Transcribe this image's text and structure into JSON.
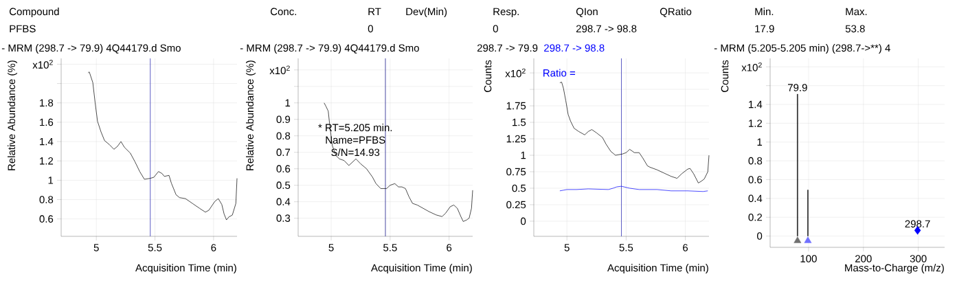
{
  "chart_data": [
    {
      "type": "other",
      "categories": [
        "Compound",
        "Conc.",
        "RT",
        "Dev(Min)",
        "Resp.",
        "QIon",
        "QRatio",
        "Min.",
        "Max."
      ],
      "cell_labels": [
        [
          "PFBS",
          null,
          "0",
          null,
          "0",
          "298.7 -> 98.8",
          null,
          "17.9",
          "53.8"
        ]
      ]
    },
    {
      "type": "line",
      "title": "- MRM (298.7 -> 79.9) 4Q44179.d Smo",
      "xlabel": "Acquisition Time (min)",
      "ylabel": "Relative Abundance (%)",
      "color": "#000000",
      "x": [
        4.93,
        4.94,
        4.97,
        4.99,
        5.01,
        5.04,
        5.07,
        5.11,
        5.15,
        5.18,
        5.21,
        5.24,
        5.29,
        5.33,
        5.37,
        5.41,
        5.46,
        5.49,
        5.53,
        5.56,
        5.58,
        5.62,
        5.64,
        5.68,
        5.71,
        5.76,
        5.82,
        5.88,
        5.93,
        5.96,
        6.01,
        6.04,
        6.07,
        6.09,
        6.11,
        6.13,
        6.16,
        6.19,
        6.2
      ],
      "values": [
        2.11,
        2.12,
        2.01,
        1.8,
        1.61,
        1.5,
        1.41,
        1.37,
        1.32,
        1.35,
        1.4,
        1.34,
        1.28,
        1.19,
        1.09,
        1.01,
        1.02,
        1.03,
        1.09,
        1.07,
        1.04,
        1.05,
        0.97,
        0.85,
        0.82,
        0.81,
        0.76,
        0.71,
        0.67,
        0.69,
        0.78,
        0.81,
        0.75,
        0.65,
        0.59,
        0.62,
        0.64,
        0.76,
        1.02
      ],
      "xlim": [
        4.7,
        6.2
      ],
      "ylim": [
        0.42,
        2.26
      ],
      "xticks": [
        5,
        5.5,
        6
      ],
      "yticks": [
        0.6,
        0.8,
        1,
        1.2,
        1.4,
        1.6,
        1.8,
        {
          "value": 2,
          "label": null
        },
        {
          "value": 2.2,
          "label": "x10$^{2}$"
        }
      ],
      "grid": true,
      "ref_lines": [
        {
          "axis": "x",
          "value": 5.46,
          "color": "#3535b5"
        }
      ]
    },
    {
      "type": "line",
      "title": "- MRM (298.7 -> 79.9) 4Q44179.d Smo",
      "xlabel": "Acquisition Time (min)",
      "ylabel": "Relative Abundance (%)",
      "color": "#000000",
      "x": [
        4.94,
        4.955,
        4.975,
        4.99,
        5.01,
        5.04,
        5.07,
        5.11,
        5.15,
        5.18,
        5.21,
        5.25,
        5.3,
        5.35,
        5.38,
        5.42,
        5.47,
        5.5,
        5.54,
        5.57,
        5.6,
        5.63,
        5.66,
        5.69,
        5.73,
        5.78,
        5.83,
        5.89,
        5.94,
        5.97,
        6.01,
        6.04,
        6.07,
        6.1,
        6.12,
        6.15,
        6.17,
        6.19,
        6.2
      ],
      "values": [
        1.0,
        0.98,
        0.95,
        0.85,
        0.74,
        0.68,
        0.66,
        0.65,
        0.62,
        0.64,
        0.66,
        0.63,
        0.6,
        0.55,
        0.51,
        0.48,
        0.48,
        0.5,
        0.51,
        0.49,
        0.49,
        0.48,
        0.43,
        0.39,
        0.38,
        0.36,
        0.34,
        0.32,
        0.31,
        0.33,
        0.37,
        0.38,
        0.36,
        0.31,
        0.28,
        0.29,
        0.3,
        0.36,
        0.47
      ],
      "xlim": [
        4.72,
        6.2
      ],
      "ylim": [
        0.19,
        1.27
      ],
      "xticks": [
        5,
        5.5,
        6
      ],
      "yticks": [
        0.3,
        0.4,
        0.5,
        0.6,
        0.7,
        0.8,
        0.9,
        1,
        {
          "value": 1.1,
          "label": null
        },
        {
          "value": 1.2,
          "label": "x10$^{2}$"
        }
      ],
      "grid": true,
      "ref_lines": [
        {
          "axis": "x",
          "value": 5.46,
          "color": "#1a1a8c"
        }
      ],
      "annotations": [
        {
          "text": "* RT=5.205 min.",
          "x": 5.205,
          "y": 0.66
        },
        "Name=PFBS",
        "S/N=14.93"
      ]
    },
    {
      "type": "line",
      "xlabel": "Acquisition Time (min)",
      "ylabel": "Counts",
      "legend": "top",
      "series": [
        {
          "name": "298.7 -> 79.9",
          "color": "#000000",
          "x": [
            4.94,
            4.955,
            4.97,
            4.99,
            5.01,
            5.03,
            5.06,
            5.1,
            5.15,
            5.18,
            5.21,
            5.25,
            5.3,
            5.33,
            5.37,
            5.41,
            5.47,
            5.5,
            5.53,
            5.57,
            5.61,
            5.64,
            5.68,
            5.7,
            5.76,
            5.82,
            5.88,
            5.93,
            5.97,
            6.02,
            6.04,
            6.07,
            6.11,
            6.13,
            6.16,
            6.19,
            6.2
          ],
          "values": [
            2.1,
            2.11,
            2.02,
            1.83,
            1.62,
            1.52,
            1.41,
            1.36,
            1.31,
            1.36,
            1.39,
            1.34,
            1.27,
            1.17,
            1.06,
            1.0,
            1.02,
            1.04,
            1.09,
            1.04,
            1.04,
            0.96,
            0.84,
            0.82,
            0.78,
            0.73,
            0.68,
            0.65,
            0.72,
            0.79,
            0.8,
            0.72,
            0.58,
            0.6,
            0.64,
            0.75,
            1.0
          ]
        },
        {
          "name": "298.7 -> 98.8",
          "color": "#0000ff",
          "x": [
            4.94,
            4.97,
            5.0,
            5.08,
            5.18,
            5.35,
            5.39,
            5.42,
            5.46,
            5.53,
            5.61,
            5.76,
            5.88,
            6.02,
            6.15,
            6.19
          ],
          "values": [
            0.46,
            0.47,
            0.48,
            0.48,
            0.49,
            0.48,
            0.5,
            0.52,
            0.53,
            0.5,
            0.48,
            0.48,
            0.46,
            0.46,
            0.45,
            0.46
          ]
        }
      ],
      "xlim": [
        4.72,
        6.2
      ],
      "ylim": [
        -0.23,
        2.47
      ],
      "xticks": [
        5,
        5.5,
        6
      ],
      "yticks": [
        0,
        0.25,
        0.5,
        0.75,
        1,
        1.25,
        1.5,
        1.75,
        {
          "value": 2,
          "label": null
        },
        {
          "value": 2.25,
          "label": "x10$^{2}$"
        }
      ],
      "grid": true,
      "ref_lines": [
        {
          "axis": "x",
          "value": 5.46,
          "color": "#3535b5"
        }
      ],
      "annotations": [
        "Ratio ="
      ]
    },
    {
      "type": "bar",
      "title": "- MRM (5.205-5.205 min) (298.7->**) 4",
      "xlabel": "Mass-to-Charge (m/z)",
      "ylabel": "Counts",
      "series": [
        {
          "type": "bar",
          "color": "#000000",
          "x": [
            79.9,
            98.8
          ],
          "values": [
            1.51,
            0.49
          ]
        },
        {
          "type": "scatter",
          "marker": "triangle",
          "color": "#707070",
          "x": [
            79.9
          ],
          "values": [
            -0.05
          ]
        },
        {
          "type": "scatter",
          "marker": "triangle",
          "color": "#7070ff",
          "x": [
            98.8
          ],
          "values": [
            -0.05
          ]
        },
        {
          "type": "scatter",
          "marker": "diamond",
          "color": "#0000ff",
          "x": [
            298.7
          ],
          "values": [
            0.06
          ]
        }
      ],
      "xlim": [
        30,
        348
      ],
      "ylim": [
        -0.12,
        1.89
      ],
      "xticks": [
        100,
        200,
        300
      ],
      "yticks": [
        0,
        0.2,
        0.4,
        0.6,
        0.8,
        1,
        1.2,
        1.4,
        {
          "value": 1.6,
          "label": null
        },
        {
          "value": 1.8,
          "label": "x10$^{2}$"
        }
      ],
      "grid": true,
      "annotations": [
        {
          "text": "79.9",
          "x": 79.9,
          "y": 1.51
        },
        {
          "text": "298.7",
          "x": 298.7,
          "y": 0.06
        }
      ]
    }
  ]
}
